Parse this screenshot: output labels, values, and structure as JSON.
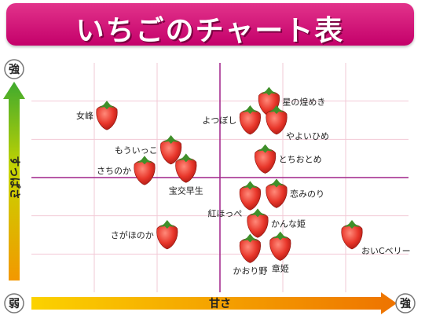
{
  "title": "いちごのチャート表",
  "chart_data": {
    "type": "scatter",
    "title": "いちごのチャート表",
    "xlabel": "甘さ",
    "ylabel": "すっぱさ",
    "x_axis_low": "弱",
    "x_axis_high": "強",
    "y_axis_high": "強",
    "grid": true,
    "xlim": [
      0,
      10
    ],
    "ylim": [
      0,
      10
    ],
    "points": [
      {
        "label": "星の煌めき",
        "x": 6.3,
        "y": 8.3
      },
      {
        "label": "女峰",
        "x": 2.0,
        "y": 7.7
      },
      {
        "label": "よつぼし",
        "x": 5.8,
        "y": 7.5
      },
      {
        "label": "やよいひめ",
        "x": 6.5,
        "y": 7.5
      },
      {
        "label": "もういっこ",
        "x": 3.7,
        "y": 6.2
      },
      {
        "label": "とちおとめ",
        "x": 6.2,
        "y": 5.8
      },
      {
        "label": "さちのか",
        "x": 3.0,
        "y": 5.3
      },
      {
        "label": "宝交早生",
        "x": 4.1,
        "y": 5.4
      },
      {
        "label": "恋みのり",
        "x": 6.5,
        "y": 4.3
      },
      {
        "label": "紅ほっぺ",
        "x": 5.8,
        "y": 4.2
      },
      {
        "label": "かんな姫",
        "x": 6.0,
        "y": 3.0
      },
      {
        "label": "おいCベリー",
        "x": 8.5,
        "y": 2.5
      },
      {
        "label": "さがほのか",
        "x": 3.6,
        "y": 2.5
      },
      {
        "label": "かおり野",
        "x": 5.8,
        "y": 1.9
      },
      {
        "label": "章姫",
        "x": 6.6,
        "y": 2.0
      }
    ]
  }
}
